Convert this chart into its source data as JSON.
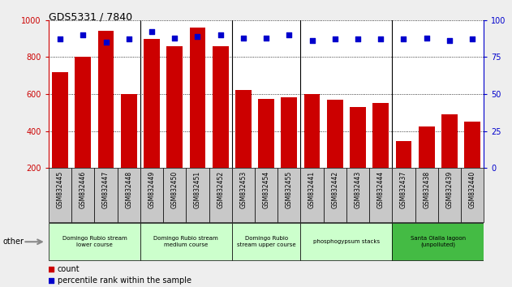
{
  "title": "GDS5331 / 7840",
  "samples": [
    "GSM832445",
    "GSM832446",
    "GSM832447",
    "GSM832448",
    "GSM832449",
    "GSM832450",
    "GSM832451",
    "GSM832452",
    "GSM832453",
    "GSM832454",
    "GSM832455",
    "GSM832441",
    "GSM832442",
    "GSM832443",
    "GSM832444",
    "GSM832437",
    "GSM832438",
    "GSM832439",
    "GSM832440"
  ],
  "counts": [
    720,
    800,
    940,
    600,
    900,
    860,
    960,
    860,
    620,
    575,
    580,
    600,
    570,
    530,
    550,
    345,
    425,
    490,
    450
  ],
  "percentiles": [
    87,
    90,
    85,
    87,
    92,
    88,
    89,
    90,
    88,
    88,
    90,
    86,
    87,
    87,
    87,
    87,
    88,
    86,
    87
  ],
  "groups": [
    {
      "label": "Domingo Rubio stream\nlower course",
      "start": 0,
      "end": 4,
      "color": "#ccffcc"
    },
    {
      "label": "Domingo Rubio stream\nmedium course",
      "start": 4,
      "end": 8,
      "color": "#ccffcc"
    },
    {
      "label": "Domingo Rubio\nstream upper course",
      "start": 8,
      "end": 11,
      "color": "#ccffcc"
    },
    {
      "label": "phosphogypsum stacks",
      "start": 11,
      "end": 15,
      "color": "#ccffcc"
    },
    {
      "label": "Santa Olalla lagoon\n(unpolluted)",
      "start": 15,
      "end": 19,
      "color": "#44bb44"
    }
  ],
  "bar_color": "#cc0000",
  "dot_color": "#0000cc",
  "ylim_left": [
    200,
    1000
  ],
  "ylim_right": [
    0,
    100
  ],
  "yticks_left": [
    200,
    400,
    600,
    800,
    1000
  ],
  "yticks_right": [
    0,
    25,
    50,
    75,
    100
  ],
  "fig_bg": "#eeeeee",
  "plot_bg": "#ffffff",
  "tick_bg": "#c8c8c8"
}
